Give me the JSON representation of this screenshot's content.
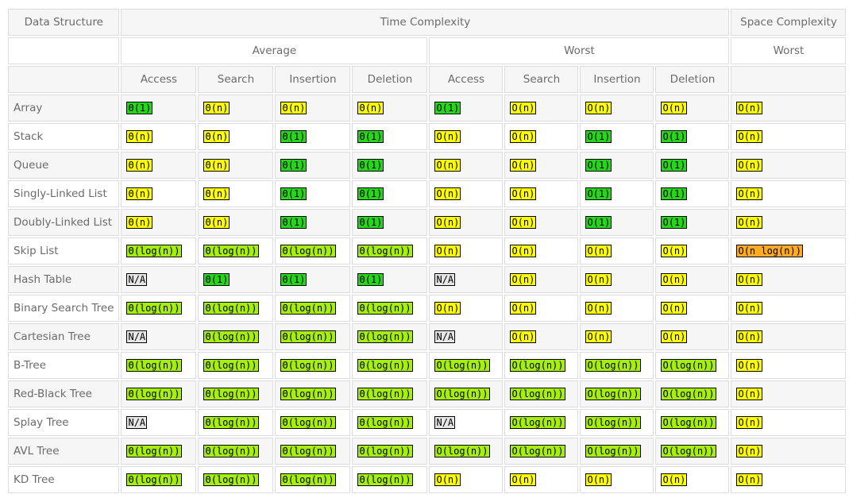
{
  "headers": {
    "data_structure": "Data Structure",
    "time_complexity": "Time Complexity",
    "space_complexity": "Space Complexity",
    "average": "Average",
    "worst": "Worst",
    "space_worst": "Worst",
    "ops": [
      "Access",
      "Search",
      "Insertion",
      "Deletion",
      "Access",
      "Search",
      "Insertion",
      "Deletion"
    ]
  },
  "colors": {
    "green": "#27d61a",
    "lime": "#a6ee0b",
    "yellow": "#ffff00",
    "orange": "#ffaa22",
    "gray": "#e6e6e6",
    "row_name": "#e8631e"
  },
  "rows": [
    {
      "name": "Array",
      "cells": [
        [
          "Θ(1)",
          "green"
        ],
        [
          "Θ(n)",
          "yellow"
        ],
        [
          "Θ(n)",
          "yellow"
        ],
        [
          "Θ(n)",
          "yellow"
        ],
        [
          "O(1)",
          "green"
        ],
        [
          "O(n)",
          "yellow"
        ],
        [
          "O(n)",
          "yellow"
        ],
        [
          "O(n)",
          "yellow"
        ],
        [
          "O(n)",
          "yellow"
        ]
      ]
    },
    {
      "name": "Stack",
      "cells": [
        [
          "Θ(n)",
          "yellow"
        ],
        [
          "Θ(n)",
          "yellow"
        ],
        [
          "Θ(1)",
          "green"
        ],
        [
          "Θ(1)",
          "green"
        ],
        [
          "O(n)",
          "yellow"
        ],
        [
          "O(n)",
          "yellow"
        ],
        [
          "O(1)",
          "green"
        ],
        [
          "O(1)",
          "green"
        ],
        [
          "O(n)",
          "yellow"
        ]
      ]
    },
    {
      "name": "Queue",
      "cells": [
        [
          "Θ(n)",
          "yellow"
        ],
        [
          "Θ(n)",
          "yellow"
        ],
        [
          "Θ(1)",
          "green"
        ],
        [
          "Θ(1)",
          "green"
        ],
        [
          "O(n)",
          "yellow"
        ],
        [
          "O(n)",
          "yellow"
        ],
        [
          "O(1)",
          "green"
        ],
        [
          "O(1)",
          "green"
        ],
        [
          "O(n)",
          "yellow"
        ]
      ]
    },
    {
      "name": "Singly-Linked List",
      "cells": [
        [
          "Θ(n)",
          "yellow"
        ],
        [
          "Θ(n)",
          "yellow"
        ],
        [
          "Θ(1)",
          "green"
        ],
        [
          "Θ(1)",
          "green"
        ],
        [
          "O(n)",
          "yellow"
        ],
        [
          "O(n)",
          "yellow"
        ],
        [
          "O(1)",
          "green"
        ],
        [
          "O(1)",
          "green"
        ],
        [
          "O(n)",
          "yellow"
        ]
      ]
    },
    {
      "name": "Doubly-Linked List",
      "cells": [
        [
          "Θ(n)",
          "yellow"
        ],
        [
          "Θ(n)",
          "yellow"
        ],
        [
          "Θ(1)",
          "green"
        ],
        [
          "Θ(1)",
          "green"
        ],
        [
          "O(n)",
          "yellow"
        ],
        [
          "O(n)",
          "yellow"
        ],
        [
          "O(1)",
          "green"
        ],
        [
          "O(1)",
          "green"
        ],
        [
          "O(n)",
          "yellow"
        ]
      ]
    },
    {
      "name": "Skip List",
      "cells": [
        [
          "Θ(log(n))",
          "lime"
        ],
        [
          "Θ(log(n))",
          "lime"
        ],
        [
          "Θ(log(n))",
          "lime"
        ],
        [
          "Θ(log(n))",
          "lime"
        ],
        [
          "O(n)",
          "yellow"
        ],
        [
          "O(n)",
          "yellow"
        ],
        [
          "O(n)",
          "yellow"
        ],
        [
          "O(n)",
          "yellow"
        ],
        [
          "O(n log(n))",
          "orange"
        ]
      ]
    },
    {
      "name": "Hash Table",
      "cells": [
        [
          "N/A",
          "gray"
        ],
        [
          "Θ(1)",
          "green"
        ],
        [
          "Θ(1)",
          "green"
        ],
        [
          "Θ(1)",
          "green"
        ],
        [
          "N/A",
          "gray"
        ],
        [
          "O(n)",
          "yellow"
        ],
        [
          "O(n)",
          "yellow"
        ],
        [
          "O(n)",
          "yellow"
        ],
        [
          "O(n)",
          "yellow"
        ]
      ]
    },
    {
      "name": "Binary Search Tree",
      "cells": [
        [
          "Θ(log(n))",
          "lime"
        ],
        [
          "Θ(log(n))",
          "lime"
        ],
        [
          "Θ(log(n))",
          "lime"
        ],
        [
          "Θ(log(n))",
          "lime"
        ],
        [
          "O(n)",
          "yellow"
        ],
        [
          "O(n)",
          "yellow"
        ],
        [
          "O(n)",
          "yellow"
        ],
        [
          "O(n)",
          "yellow"
        ],
        [
          "O(n)",
          "yellow"
        ]
      ]
    },
    {
      "name": "Cartesian Tree",
      "cells": [
        [
          "N/A",
          "gray"
        ],
        [
          "Θ(log(n))",
          "lime"
        ],
        [
          "Θ(log(n))",
          "lime"
        ],
        [
          "Θ(log(n))",
          "lime"
        ],
        [
          "N/A",
          "gray"
        ],
        [
          "O(n)",
          "yellow"
        ],
        [
          "O(n)",
          "yellow"
        ],
        [
          "O(n)",
          "yellow"
        ],
        [
          "O(n)",
          "yellow"
        ]
      ]
    },
    {
      "name": "B-Tree",
      "cells": [
        [
          "Θ(log(n))",
          "lime"
        ],
        [
          "Θ(log(n))",
          "lime"
        ],
        [
          "Θ(log(n))",
          "lime"
        ],
        [
          "Θ(log(n))",
          "lime"
        ],
        [
          "O(log(n))",
          "lime"
        ],
        [
          "O(log(n))",
          "lime"
        ],
        [
          "O(log(n))",
          "lime"
        ],
        [
          "O(log(n))",
          "lime"
        ],
        [
          "O(n)",
          "yellow"
        ]
      ]
    },
    {
      "name": "Red-Black Tree",
      "cells": [
        [
          "Θ(log(n))",
          "lime"
        ],
        [
          "Θ(log(n))",
          "lime"
        ],
        [
          "Θ(log(n))",
          "lime"
        ],
        [
          "Θ(log(n))",
          "lime"
        ],
        [
          "O(log(n))",
          "lime"
        ],
        [
          "O(log(n))",
          "lime"
        ],
        [
          "O(log(n))",
          "lime"
        ],
        [
          "O(log(n))",
          "lime"
        ],
        [
          "O(n)",
          "yellow"
        ]
      ]
    },
    {
      "name": "Splay Tree",
      "cells": [
        [
          "N/A",
          "gray"
        ],
        [
          "Θ(log(n))",
          "lime"
        ],
        [
          "Θ(log(n))",
          "lime"
        ],
        [
          "Θ(log(n))",
          "lime"
        ],
        [
          "N/A",
          "gray"
        ],
        [
          "O(log(n))",
          "lime"
        ],
        [
          "O(log(n))",
          "lime"
        ],
        [
          "O(log(n))",
          "lime"
        ],
        [
          "O(n)",
          "yellow"
        ]
      ]
    },
    {
      "name": "AVL Tree",
      "cells": [
        [
          "Θ(log(n))",
          "lime"
        ],
        [
          "Θ(log(n))",
          "lime"
        ],
        [
          "Θ(log(n))",
          "lime"
        ],
        [
          "Θ(log(n))",
          "lime"
        ],
        [
          "O(log(n))",
          "lime"
        ],
        [
          "O(log(n))",
          "lime"
        ],
        [
          "O(log(n))",
          "lime"
        ],
        [
          "O(log(n))",
          "lime"
        ],
        [
          "O(n)",
          "yellow"
        ]
      ]
    },
    {
      "name": "KD Tree",
      "cells": [
        [
          "Θ(log(n))",
          "lime"
        ],
        [
          "Θ(log(n))",
          "lime"
        ],
        [
          "Θ(log(n))",
          "lime"
        ],
        [
          "Θ(log(n))",
          "lime"
        ],
        [
          "O(n)",
          "yellow"
        ],
        [
          "O(n)",
          "yellow"
        ],
        [
          "O(n)",
          "yellow"
        ],
        [
          "O(n)",
          "yellow"
        ],
        [
          "O(n)",
          "yellow"
        ]
      ]
    }
  ]
}
